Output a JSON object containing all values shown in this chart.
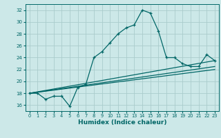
{
  "title": "",
  "xlabel": "Humidex (Indice chaleur)",
  "background_color": "#cce8e8",
  "grid_color": "#aacccc",
  "line_color": "#006666",
  "xlim": [
    -0.5,
    23.5
  ],
  "ylim": [
    15.0,
    33.0
  ],
  "xticks": [
    0,
    1,
    2,
    3,
    4,
    5,
    6,
    7,
    8,
    9,
    10,
    11,
    12,
    13,
    14,
    15,
    16,
    17,
    18,
    19,
    20,
    21,
    22,
    23
  ],
  "yticks": [
    16,
    18,
    20,
    22,
    24,
    26,
    28,
    30,
    32
  ],
  "line1_x": [
    0,
    1,
    2,
    3,
    4,
    5,
    6,
    7,
    8,
    9,
    10,
    11,
    12,
    13,
    14,
    15,
    16,
    17,
    18,
    19,
    20,
    21,
    22,
    23
  ],
  "line1_y": [
    18,
    18,
    17,
    17.5,
    17.5,
    15.8,
    19.0,
    19.5,
    24,
    25,
    26.5,
    28,
    29,
    29.5,
    32,
    31.5,
    28.5,
    24,
    24,
    23,
    22.5,
    22.5,
    24.5,
    23.5
  ],
  "line2_x": [
    0,
    23
  ],
  "line2_y": [
    18.0,
    22.0
  ],
  "line3_x": [
    0,
    23
  ],
  "line3_y": [
    18.0,
    22.5
  ],
  "line4_x": [
    0,
    23
  ],
  "line4_y": [
    18.0,
    23.5
  ],
  "tick_fontsize": 5.0,
  "xlabel_fontsize": 6.5
}
